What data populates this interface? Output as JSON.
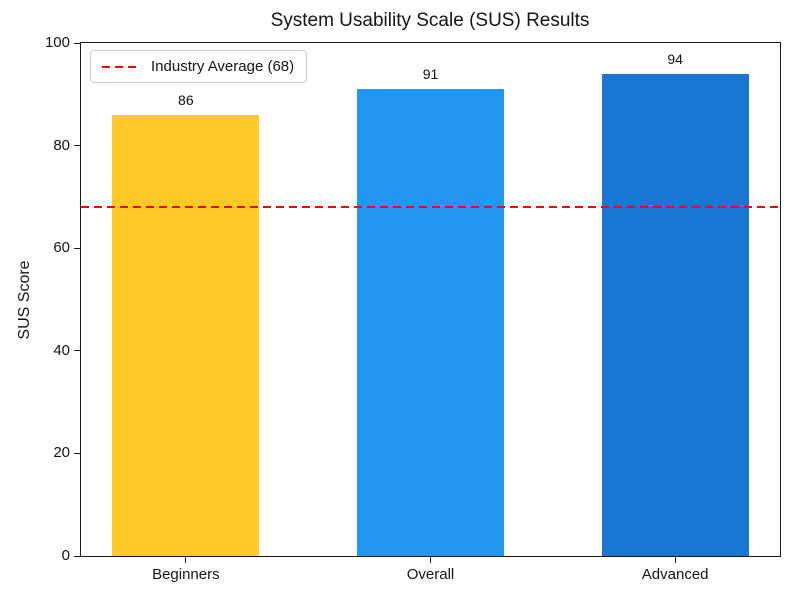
{
  "chart_data": {
    "type": "bar",
    "title": "System Usability Scale (SUS) Results",
    "xlabel": "",
    "ylabel": "SUS Score",
    "categories": [
      "Beginners",
      "Overall",
      "Advanced"
    ],
    "values": [
      86,
      91,
      94
    ],
    "value_labels": [
      "86",
      "91",
      "94"
    ],
    "bar_colors": [
      "#FFCA28",
      "#2196F3",
      "#1976D2"
    ],
    "ylim": [
      0,
      100
    ],
    "yticks": [
      0,
      20,
      40,
      60,
      80,
      100
    ],
    "grid": false,
    "reference_line": {
      "value": 68,
      "color": "#FF0000",
      "style": "dashed",
      "label": "Industry Average (68)"
    },
    "legend": {
      "position": "upper-left",
      "entries": [
        {
          "label": "Industry Average (68)",
          "color": "#FF0000",
          "style": "dashed"
        }
      ]
    },
    "layout_hints": {
      "bar_width_frac": 0.211,
      "bar_centers_frac": [
        0.15,
        0.5,
        0.85
      ],
      "legend_border_color": "#cccccc"
    }
  }
}
